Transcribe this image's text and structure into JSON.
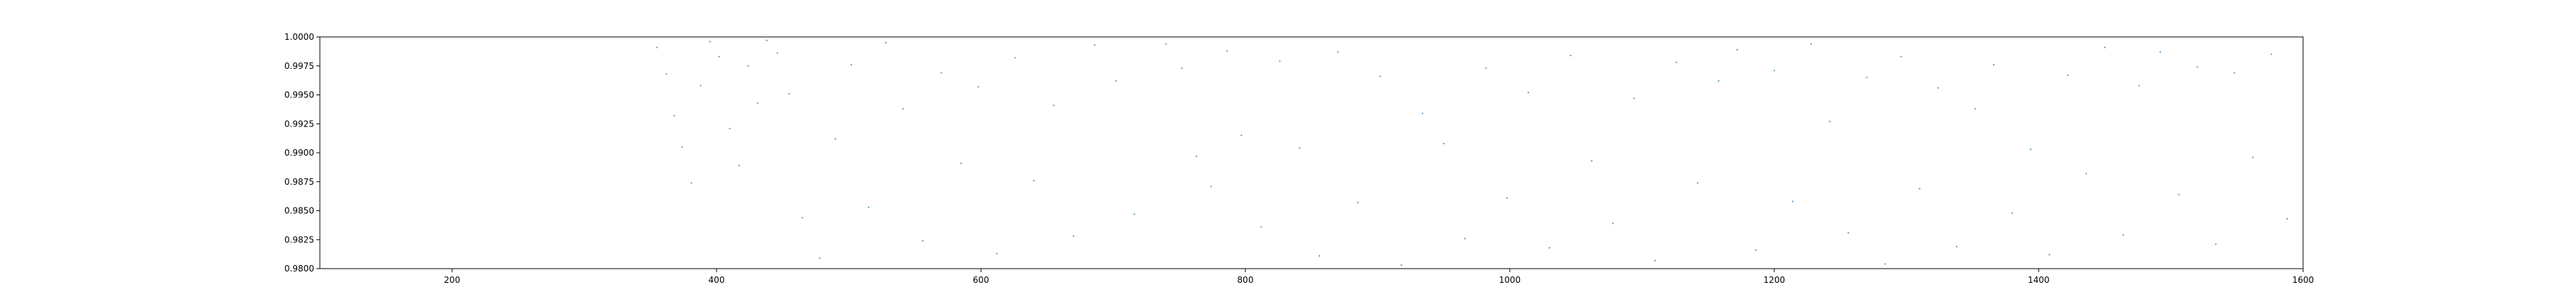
{
  "chart_data": {
    "type": "scatter",
    "title": "",
    "xlabel": "",
    "ylabel": "",
    "xlim": [
      100,
      1600
    ],
    "ylim": [
      0.98,
      1.0
    ],
    "x_ticks": [
      200,
      400,
      600,
      800,
      1000,
      1200,
      1400,
      1600
    ],
    "x_tick_labels": [
      "200",
      "400",
      "600",
      "800",
      "1000",
      "1200",
      "1400",
      "1600"
    ],
    "y_ticks": [
      0.98,
      0.9825,
      0.985,
      0.9875,
      0.99,
      0.9925,
      0.995,
      0.9975,
      1.0
    ],
    "y_tick_labels": [
      "0.9800",
      "0.9825",
      "0.9850",
      "0.9875",
      "0.9900",
      "0.9925",
      "0.9950",
      "0.9975",
      "1.0000"
    ],
    "grid": false,
    "point_color": "#1f77b4",
    "series": [
      {
        "points": [
          [
            355,
            0.9991
          ],
          [
            362,
            0.9968
          ],
          [
            368,
            0.9932
          ],
          [
            374,
            0.9905
          ],
          [
            381,
            0.9874
          ],
          [
            388,
            0.9958
          ],
          [
            395,
            0.9996
          ],
          [
            402,
            0.9983
          ],
          [
            410,
            0.9921
          ],
          [
            417,
            0.9889
          ],
          [
            424,
            0.9975
          ],
          [
            431,
            0.9943
          ],
          [
            438,
            0.9997
          ],
          [
            446,
            0.9986
          ],
          [
            455,
            0.9951
          ],
          [
            465,
            0.9844
          ],
          [
            478,
            0.9809
          ],
          [
            490,
            0.9912
          ],
          [
            502,
            0.9976
          ],
          [
            515,
            0.9853
          ],
          [
            528,
            0.9995
          ],
          [
            541,
            0.9938
          ],
          [
            556,
            0.9824
          ],
          [
            570,
            0.9969
          ],
          [
            585,
            0.9891
          ],
          [
            598,
            0.9957
          ],
          [
            612,
            0.9813
          ],
          [
            626,
            0.9982
          ],
          [
            640,
            0.9876
          ],
          [
            655,
            0.9941
          ],
          [
            670,
            0.9828
          ],
          [
            686,
            0.9993
          ],
          [
            702,
            0.9962
          ],
          [
            716,
            0.9847
          ],
          [
            740,
            0.9994
          ],
          [
            752,
            0.9973
          ],
          [
            763,
            0.9897
          ],
          [
            774,
            0.9871
          ],
          [
            786,
            0.9988
          ],
          [
            797,
            0.9915
          ],
          [
            812,
            0.9836
          ],
          [
            826,
            0.9979
          ],
          [
            841,
            0.9904
          ],
          [
            856,
            0.9811
          ],
          [
            870,
            0.9987
          ],
          [
            885,
            0.9857
          ],
          [
            902,
            0.9966
          ],
          [
            918,
            0.9803
          ],
          [
            934,
            0.9934
          ],
          [
            950,
            0.9908
          ],
          [
            966,
            0.9826
          ],
          [
            982,
            0.9973
          ],
          [
            998,
            0.9861
          ],
          [
            1014,
            0.9952
          ],
          [
            1030,
            0.9818
          ],
          [
            1046,
            0.9984
          ],
          [
            1062,
            0.9893
          ],
          [
            1078,
            0.9839
          ],
          [
            1094,
            0.9947
          ],
          [
            1110,
            0.9807
          ],
          [
            1126,
            0.9978
          ],
          [
            1142,
            0.9874
          ],
          [
            1158,
            0.9962
          ],
          [
            1172,
            0.9989
          ],
          [
            1186,
            0.9816
          ],
          [
            1200,
            0.9971
          ],
          [
            1214,
            0.9858
          ],
          [
            1228,
            0.9994
          ],
          [
            1242,
            0.9927
          ],
          [
            1256,
            0.9831
          ],
          [
            1270,
            0.9965
          ],
          [
            1284,
            0.9804
          ],
          [
            1296,
            0.9983
          ],
          [
            1310,
            0.9869
          ],
          [
            1324,
            0.9956
          ],
          [
            1338,
            0.9819
          ],
          [
            1352,
            0.9938
          ],
          [
            1366,
            0.9976
          ],
          [
            1380,
            0.9848
          ],
          [
            1394,
            0.9903
          ],
          [
            1408,
            0.9812
          ],
          [
            1422,
            0.9967
          ],
          [
            1436,
            0.9882
          ],
          [
            1450,
            0.9991
          ],
          [
            1464,
            0.9829
          ],
          [
            1476,
            0.9958
          ],
          [
            1492,
            0.9987
          ],
          [
            1506,
            0.9864
          ],
          [
            1520,
            0.9974
          ],
          [
            1534,
            0.9821
          ],
          [
            1548,
            0.9969
          ],
          [
            1562,
            0.9896
          ],
          [
            1576,
            0.9985
          ],
          [
            1588,
            0.9843
          ]
        ]
      }
    ]
  }
}
